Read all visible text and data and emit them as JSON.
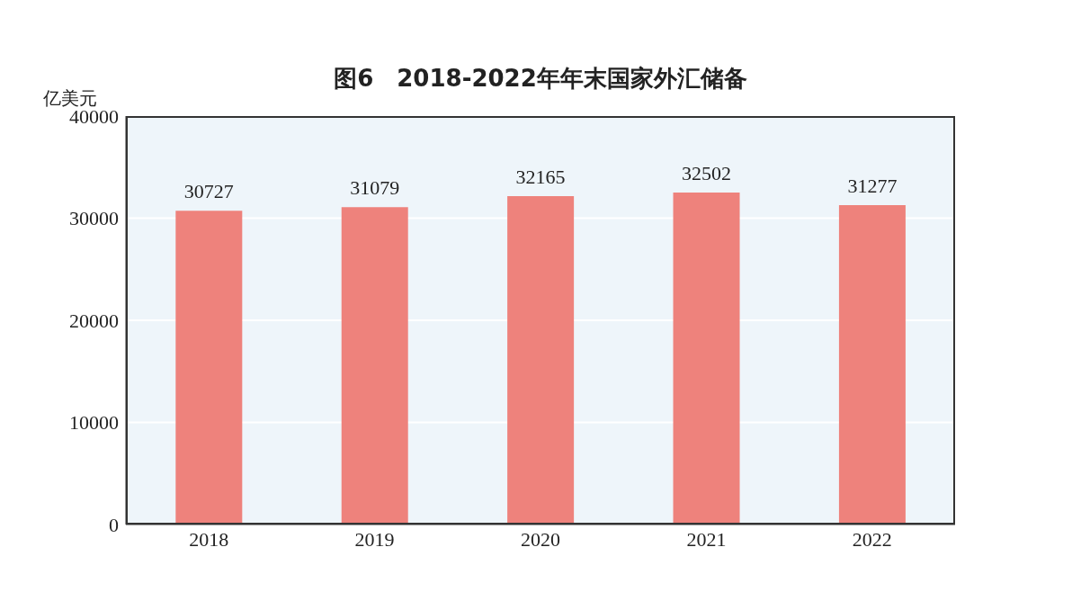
{
  "chart_data": {
    "type": "bar",
    "title": "图6　2018-2022年年末国家外汇储备",
    "ylabel": "亿美元",
    "categories": [
      "2018",
      "2019",
      "2020",
      "2021",
      "2022"
    ],
    "values": [
      30727,
      31079,
      32165,
      32502,
      31277
    ],
    "color": "#ee827c",
    "ylim": [
      0,
      40000
    ],
    "yticks": [
      0,
      10000,
      20000,
      30000,
      40000
    ],
    "grid": "y",
    "data_labels": true
  }
}
